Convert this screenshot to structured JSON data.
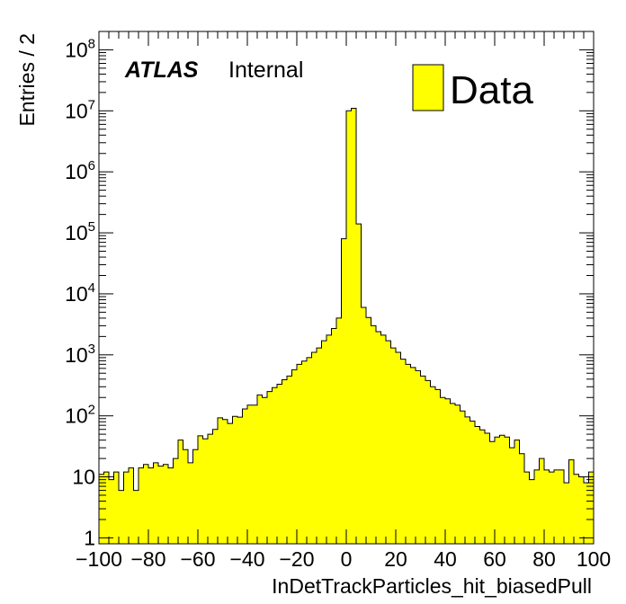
{
  "chart_data": {
    "type": "bar",
    "subtype": "histogram",
    "y_scale": "log",
    "xlabel": "InDetTrackParticles_hit_biasedPull",
    "ylabel": "Entries / 2",
    "xlim": [
      -100,
      100
    ],
    "ylim": [
      0.8,
      200000000
    ],
    "bin_width": 2,
    "x_ticks": [
      "−100",
      "−80",
      "−60",
      "−40",
      "−20",
      "0",
      "20",
      "40",
      "60",
      "80",
      "100"
    ],
    "y_ticks": [
      {
        "value": 1,
        "base": "1",
        "exp": ""
      },
      {
        "value": 10,
        "base": "10",
        "exp": ""
      },
      {
        "value": 100,
        "base": "10",
        "exp": "2"
      },
      {
        "value": 1000,
        "base": "10",
        "exp": "3"
      },
      {
        "value": 10000,
        "base": "10",
        "exp": "4"
      },
      {
        "value": 100000,
        "base": "10",
        "exp": "5"
      },
      {
        "value": 1000000,
        "base": "10",
        "exp": "6"
      },
      {
        "value": 10000000,
        "base": "10",
        "exp": "7"
      },
      {
        "value": 100000000,
        "base": "10",
        "exp": "8"
      }
    ],
    "fill_color": "#ffff00",
    "line_color": "#000000",
    "legend": {
      "label": "Data",
      "position": "top-right"
    },
    "annotation": {
      "bold_italic": "ATLAS",
      "plain": "Internal"
    },
    "series": [
      {
        "name": "Data",
        "bin_edges_start": -100,
        "values": [
          11,
          12,
          9,
          12,
          6,
          12,
          14,
          6,
          14,
          16,
          14,
          17,
          15,
          16,
          14,
          20,
          40,
          28,
          17,
          28,
          47,
          42,
          50,
          60,
          93,
          87,
          75,
          98,
          95,
          130,
          150,
          150,
          220,
          200,
          250,
          290,
          330,
          390,
          450,
          570,
          700,
          790,
          900,
          1100,
          1300,
          1700,
          2100,
          2700,
          4000,
          80000,
          10000000,
          11000000,
          140000,
          6000,
          4100,
          3000,
          2400,
          2100,
          1700,
          1300,
          1100,
          850,
          700,
          620,
          550,
          450,
          380,
          300,
          270,
          200,
          190,
          160,
          150,
          120,
          96,
          82,
          67,
          59,
          52,
          38,
          45,
          48,
          45,
          30,
          40,
          24,
          12,
          9,
          13,
          20,
          13,
          12,
          13,
          13,
          8,
          19,
          11,
          10,
          8,
          12
        ]
      }
    ]
  }
}
